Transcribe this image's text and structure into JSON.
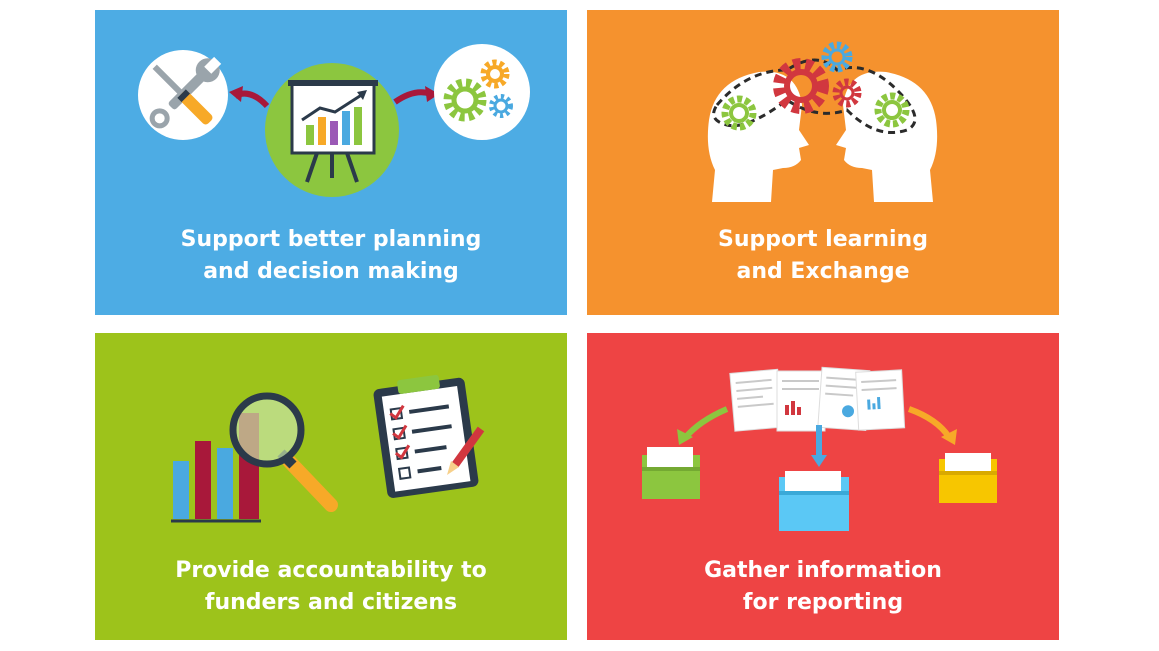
{
  "colors": {
    "blue": "#4dace4",
    "orange": "#f5922e",
    "green": "#9dc31b",
    "red": "#ee4444",
    "gear_green": "#8cc63f",
    "gear_orange": "#f7a928",
    "gear_blue": "#4aa9e0",
    "gear_red": "#d1373f",
    "dark_red": "#a8183a",
    "folder_blue": "#5bc8f5",
    "folder_yellow": "#f7c600"
  },
  "tiles": {
    "plan": {
      "line1": "Support better planning",
      "line2": "and decision making",
      "icons": [
        "tools-icon",
        "presentation-chart-icon",
        "gears-icon"
      ]
    },
    "learn": {
      "line1": "Support learning",
      "line2": "and Exchange",
      "icons": [
        "heads-exchange-icon",
        "gears-icon"
      ]
    },
    "account": {
      "line1": "Provide accountability to",
      "line2": "funders and citizens",
      "icons": [
        "bar-chart-icon",
        "magnifier-icon",
        "clipboard-checklist-icon",
        "pencil-icon"
      ]
    },
    "gather": {
      "line1": "Gather information",
      "line2": "for reporting",
      "icons": [
        "reports-stack-icon",
        "folder-icon"
      ]
    }
  }
}
